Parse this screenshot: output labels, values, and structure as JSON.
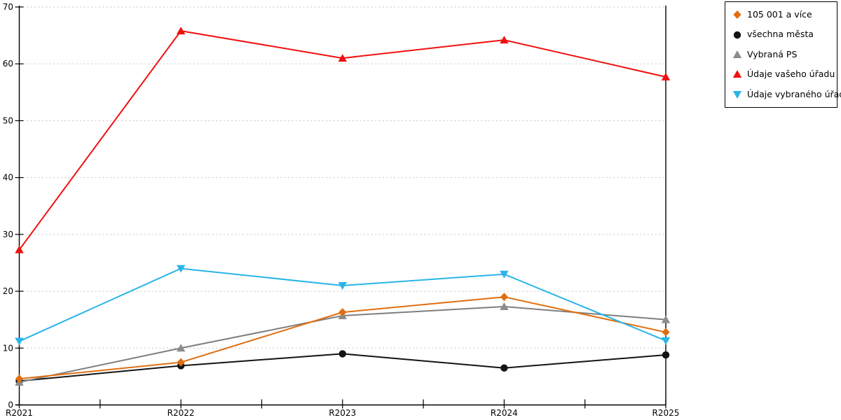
{
  "chart_data": {
    "type": "line",
    "categories": [
      "R2021",
      "R2022",
      "R2023",
      "R2024",
      "R2025"
    ],
    "series": [
      {
        "name": "105 001 a více",
        "marker": "diamond",
        "color": "#E06E10",
        "values": [
          4.6,
          7.5,
          16.3,
          19.0,
          12.8
        ]
      },
      {
        "name": "všechna města",
        "marker": "circle",
        "color": "#141414",
        "values": [
          4.2,
          6.9,
          9.0,
          6.5,
          8.8
        ]
      },
      {
        "name": "Vybraná PS",
        "marker": "triangle-up",
        "color": "#8C8C8C",
        "line_color": "#7F7F7F",
        "values": [
          4.0,
          10.0,
          15.7,
          17.3,
          15.0
        ]
      },
      {
        "name": "Údaje vašeho úřadu",
        "marker": "triangle-up",
        "color": "#F01010",
        "values": [
          27.3,
          65.8,
          61.0,
          64.2,
          57.7
        ]
      },
      {
        "name": "Údaje vybraného úřadu",
        "marker": "triangle-down",
        "color": "#2AB4E8",
        "values": [
          11.2,
          24.0,
          21.0,
          23.0,
          11.3
        ]
      }
    ],
    "ylim": [
      0,
      70
    ],
    "yticks": [
      0,
      10,
      20,
      30,
      40,
      50,
      60,
      70
    ],
    "xlabel": "",
    "ylabel": "",
    "grid": "horizontal-dotted",
    "grid_color": "#C6C6C6",
    "axis_color": "#000000",
    "legend_position": "top-right-outside",
    "legend_entries": [
      "105 001 a více",
      "všechna města",
      "Vybraná PS",
      "Údaje vašeho úřadu",
      "Údaje vybraného úřadu"
    ]
  }
}
